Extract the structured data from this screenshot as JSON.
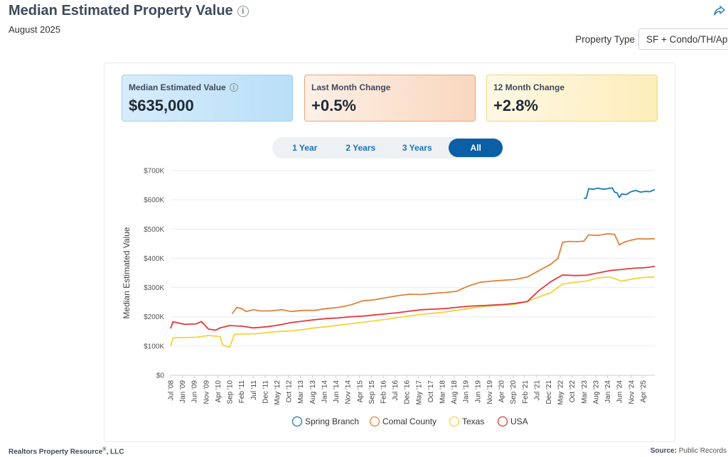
{
  "header": {
    "title": "Median Estimated Property Value",
    "subtitle": "August 2025"
  },
  "filter": {
    "label": "Property Type",
    "value": "SF + Condo/TH/Apt"
  },
  "kpis": [
    {
      "label": "Median Estimated Value",
      "value": "$635,000"
    },
    {
      "label": "Last Month Change",
      "value": "+0.5%"
    },
    {
      "label": "12 Month Change",
      "value": "+2.8%"
    }
  ],
  "ranges": [
    "1 Year",
    "2 Years",
    "3 Years",
    "All"
  ],
  "active_range": "All",
  "footer": {
    "company": "Realtors Property Resource",
    "company_suffix": ", LLC",
    "source_label": "Source:",
    "source_value": "Public Records"
  },
  "colors": {
    "spring_branch": "#1a7ab5",
    "comal_county": "#e0823a",
    "texas": "#f6d23c",
    "usa": "#e03a3e"
  },
  "chart_data": {
    "type": "line",
    "ylabel": "Median Estimated Value",
    "ylim": [
      0,
      700000
    ],
    "y_ticks": [
      0,
      100000,
      200000,
      300000,
      400000,
      500000,
      600000,
      700000
    ],
    "y_tick_labels": [
      "$0",
      "$100K",
      "$200K",
      "$300K",
      "$400K",
      "$500K",
      "$600K",
      "$700K"
    ],
    "x_start": "2008-07",
    "x_end": "2025-08",
    "x_tick_labels": [
      "Jul '08",
      "Jan '09",
      "Jun '09",
      "Nov '09",
      "Apr '10",
      "Sep '10",
      "Feb '11",
      "Jul '11",
      "Dec '11",
      "May '12",
      "Oct '12",
      "Mar '13",
      "Aug '13",
      "Jan '14",
      "Jun '14",
      "Nov '14",
      "Apr '15",
      "Sep '15",
      "Feb '16",
      "Jul '16",
      "Dec '16",
      "May '17",
      "Oct '17",
      "Mar '18",
      "Aug '18",
      "Jan '19",
      "Jun '19",
      "Nov '19",
      "Apr '20",
      "Sep '20",
      "Feb '21",
      "Jul '21",
      "Dec '21",
      "May '22",
      "Oct '22",
      "Mar '23",
      "Aug '23",
      "Jan '24",
      "Jun '24",
      "Nov '24",
      "Apr '25"
    ],
    "legend_position": "bottom",
    "series": [
      {
        "name": "Spring Branch",
        "color": "#1a7ab5",
        "points": [
          [
            "2023-02",
            605000
          ],
          [
            "2023-03",
            606000
          ],
          [
            "2023-04",
            638000
          ],
          [
            "2023-06",
            636000
          ],
          [
            "2023-08",
            640000
          ],
          [
            "2023-10",
            636000
          ],
          [
            "2023-12",
            638000
          ],
          [
            "2024-02",
            641000
          ],
          [
            "2024-03",
            626000
          ],
          [
            "2024-04",
            624000
          ],
          [
            "2024-05",
            608000
          ],
          [
            "2024-06",
            620000
          ],
          [
            "2024-08",
            618000
          ],
          [
            "2024-10",
            628000
          ],
          [
            "2024-12",
            632000
          ],
          [
            "2025-02",
            626000
          ],
          [
            "2025-04",
            629000
          ],
          [
            "2025-06",
            628000
          ],
          [
            "2025-08",
            635000
          ]
        ]
      },
      {
        "name": "Comal County",
        "color": "#e0823a",
        "points": [
          [
            "2010-09",
            210000
          ],
          [
            "2010-11",
            232000
          ],
          [
            "2011-01",
            228000
          ],
          [
            "2011-03",
            218000
          ],
          [
            "2011-06",
            224000
          ],
          [
            "2011-09",
            220000
          ],
          [
            "2012-01",
            220000
          ],
          [
            "2012-06",
            224000
          ],
          [
            "2012-10",
            218000
          ],
          [
            "2013-03",
            222000
          ],
          [
            "2013-08",
            222000
          ],
          [
            "2014-01",
            228000
          ],
          [
            "2014-06",
            232000
          ],
          [
            "2014-11",
            240000
          ],
          [
            "2015-04",
            254000
          ],
          [
            "2015-09",
            258000
          ],
          [
            "2016-02",
            265000
          ],
          [
            "2016-07",
            272000
          ],
          [
            "2016-12",
            277000
          ],
          [
            "2017-05",
            276000
          ],
          [
            "2017-10",
            280000
          ],
          [
            "2018-03",
            283000
          ],
          [
            "2018-08",
            287000
          ],
          [
            "2019-01",
            305000
          ],
          [
            "2019-06",
            318000
          ],
          [
            "2019-11",
            322000
          ],
          [
            "2020-04",
            325000
          ],
          [
            "2020-09",
            328000
          ],
          [
            "2021-02",
            336000
          ],
          [
            "2021-07",
            358000
          ],
          [
            "2021-12",
            380000
          ],
          [
            "2022-03",
            400000
          ],
          [
            "2022-05",
            455000
          ],
          [
            "2022-08",
            458000
          ],
          [
            "2022-11",
            457000
          ],
          [
            "2023-02",
            459000
          ],
          [
            "2023-04",
            480000
          ],
          [
            "2023-08",
            478000
          ],
          [
            "2023-12",
            484000
          ],
          [
            "2024-03",
            482000
          ],
          [
            "2024-05",
            446000
          ],
          [
            "2024-07",
            455000
          ],
          [
            "2024-10",
            462000
          ],
          [
            "2025-01",
            467000
          ],
          [
            "2025-04",
            466000
          ],
          [
            "2025-08",
            467000
          ]
        ]
      },
      {
        "name": "Texas",
        "color": "#f6d23c",
        "points": [
          [
            "2008-07",
            100000
          ],
          [
            "2008-08",
            128000
          ],
          [
            "2009-01",
            129000
          ],
          [
            "2009-06",
            130000
          ],
          [
            "2009-11",
            136000
          ],
          [
            "2010-02",
            134000
          ],
          [
            "2010-04",
            132000
          ],
          [
            "2010-05",
            104000
          ],
          [
            "2010-08",
            96000
          ],
          [
            "2010-10",
            140000
          ],
          [
            "2011-02",
            141000
          ],
          [
            "2011-07",
            142000
          ],
          [
            "2011-12",
            146000
          ],
          [
            "2012-05",
            150000
          ],
          [
            "2012-10",
            152000
          ],
          [
            "2013-03",
            156000
          ],
          [
            "2013-08",
            162000
          ],
          [
            "2014-01",
            166000
          ],
          [
            "2014-06",
            171000
          ],
          [
            "2014-11",
            176000
          ],
          [
            "2015-04",
            181000
          ],
          [
            "2015-09",
            186000
          ],
          [
            "2016-02",
            191000
          ],
          [
            "2016-07",
            197000
          ],
          [
            "2016-12",
            203000
          ],
          [
            "2017-05",
            208000
          ],
          [
            "2017-10",
            212000
          ],
          [
            "2018-03",
            216000
          ],
          [
            "2018-08",
            222000
          ],
          [
            "2019-01",
            228000
          ],
          [
            "2019-06",
            234000
          ],
          [
            "2019-11",
            238000
          ],
          [
            "2020-04",
            240000
          ],
          [
            "2020-09",
            243000
          ],
          [
            "2021-02",
            252000
          ],
          [
            "2021-07",
            268000
          ],
          [
            "2021-12",
            282000
          ],
          [
            "2022-05",
            312000
          ],
          [
            "2022-10",
            318000
          ],
          [
            "2023-03",
            322000
          ],
          [
            "2023-08",
            333000
          ],
          [
            "2024-01",
            336000
          ],
          [
            "2024-06",
            322000
          ],
          [
            "2024-11",
            330000
          ],
          [
            "2025-04",
            335000
          ],
          [
            "2025-08",
            336000
          ]
        ]
      },
      {
        "name": "USA",
        "color": "#e03a3e",
        "points": [
          [
            "2008-07",
            160000
          ],
          [
            "2008-08",
            183000
          ],
          [
            "2009-01",
            174000
          ],
          [
            "2009-06",
            176000
          ],
          [
            "2009-08",
            184000
          ],
          [
            "2009-11",
            158000
          ],
          [
            "2010-02",
            154000
          ],
          [
            "2010-04",
            162000
          ],
          [
            "2010-08",
            170000
          ],
          [
            "2011-01",
            168000
          ],
          [
            "2011-06",
            162000
          ],
          [
            "2011-12",
            166000
          ],
          [
            "2012-05",
            172000
          ],
          [
            "2012-10",
            180000
          ],
          [
            "2013-03",
            185000
          ],
          [
            "2013-08",
            190000
          ],
          [
            "2014-01",
            194000
          ],
          [
            "2014-06",
            196000
          ],
          [
            "2014-11",
            200000
          ],
          [
            "2015-04",
            202000
          ],
          [
            "2015-09",
            206000
          ],
          [
            "2016-02",
            210000
          ],
          [
            "2016-07",
            214000
          ],
          [
            "2016-12",
            219000
          ],
          [
            "2017-05",
            224000
          ],
          [
            "2017-10",
            226000
          ],
          [
            "2018-03",
            228000
          ],
          [
            "2018-08",
            232000
          ],
          [
            "2019-01",
            236000
          ],
          [
            "2019-06",
            238000
          ],
          [
            "2019-11",
            240000
          ],
          [
            "2020-04",
            242000
          ],
          [
            "2020-09",
            246000
          ],
          [
            "2021-02",
            252000
          ],
          [
            "2021-07",
            290000
          ],
          [
            "2021-12",
            320000
          ],
          [
            "2022-05",
            343000
          ],
          [
            "2022-10",
            341000
          ],
          [
            "2023-03",
            342000
          ],
          [
            "2023-08",
            350000
          ],
          [
            "2024-01",
            358000
          ],
          [
            "2024-06",
            362000
          ],
          [
            "2024-11",
            366000
          ],
          [
            "2025-04",
            368000
          ],
          [
            "2025-08",
            372000
          ]
        ]
      }
    ]
  }
}
